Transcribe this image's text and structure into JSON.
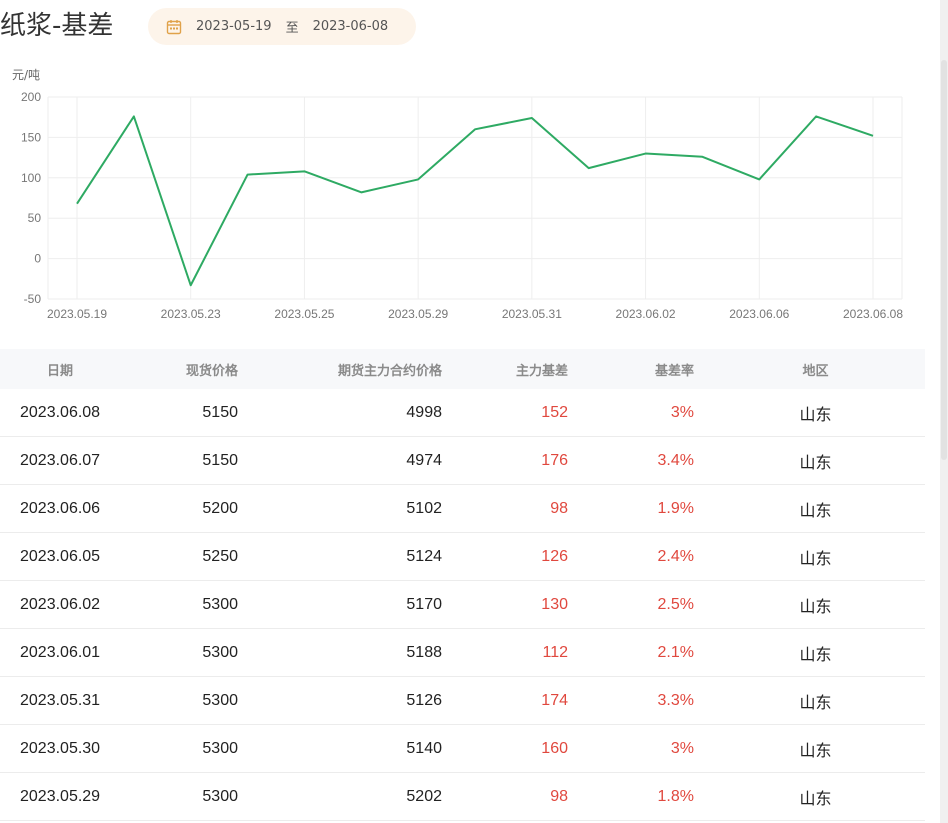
{
  "header": {
    "title": "纸浆-基差",
    "date_start": "2023-05-19",
    "date_sep": "至",
    "date_end": "2023-06-08"
  },
  "chart_data": {
    "type": "line",
    "ylabel": "元/吨",
    "ylim": [
      -50,
      200
    ],
    "y_ticks": [
      "200",
      "150",
      "100",
      "50",
      "0",
      "-50"
    ],
    "x_tick_labels": [
      "2023.05.19",
      "2023.05.23",
      "2023.05.25",
      "2023.05.29",
      "2023.05.31",
      "2023.06.02",
      "2023.06.06",
      "2023.06.08"
    ],
    "x": [
      "2023.05.19",
      "2023.05.22",
      "2023.05.23",
      "2023.05.24",
      "2023.05.25",
      "2023.05.26",
      "2023.05.29",
      "2023.05.30",
      "2023.05.31",
      "2023.06.01",
      "2023.06.02",
      "2023.06.05",
      "2023.06.06",
      "2023.06.07",
      "2023.06.08"
    ],
    "values": [
      68,
      176,
      -33,
      104,
      108,
      82,
      98,
      160,
      174,
      112,
      130,
      126,
      98,
      176,
      152
    ],
    "line_color": "#2eaa63",
    "grid": true
  },
  "table": {
    "headers": {
      "date": "日期",
      "spot": "现货价格",
      "futures": "期货主力合约价格",
      "basis": "主力基差",
      "rate": "基差率",
      "region": "地区"
    },
    "rows": [
      {
        "date": "2023.06.08",
        "spot": "5150",
        "futures": "4998",
        "basis": "152",
        "rate": "3%",
        "region": "山东"
      },
      {
        "date": "2023.06.07",
        "spot": "5150",
        "futures": "4974",
        "basis": "176",
        "rate": "3.4%",
        "region": "山东"
      },
      {
        "date": "2023.06.06",
        "spot": "5200",
        "futures": "5102",
        "basis": "98",
        "rate": "1.9%",
        "region": "山东"
      },
      {
        "date": "2023.06.05",
        "spot": "5250",
        "futures": "5124",
        "basis": "126",
        "rate": "2.4%",
        "region": "山东"
      },
      {
        "date": "2023.06.02",
        "spot": "5300",
        "futures": "5170",
        "basis": "130",
        "rate": "2.5%",
        "region": "山东"
      },
      {
        "date": "2023.06.01",
        "spot": "5300",
        "futures": "5188",
        "basis": "112",
        "rate": "2.1%",
        "region": "山东"
      },
      {
        "date": "2023.05.31",
        "spot": "5300",
        "futures": "5126",
        "basis": "174",
        "rate": "3.3%",
        "region": "山东"
      },
      {
        "date": "2023.05.30",
        "spot": "5300",
        "futures": "5140",
        "basis": "160",
        "rate": "3%",
        "region": "山东"
      },
      {
        "date": "2023.05.29",
        "spot": "5300",
        "futures": "5202",
        "basis": "98",
        "rate": "1.8%",
        "region": "山东"
      }
    ]
  }
}
